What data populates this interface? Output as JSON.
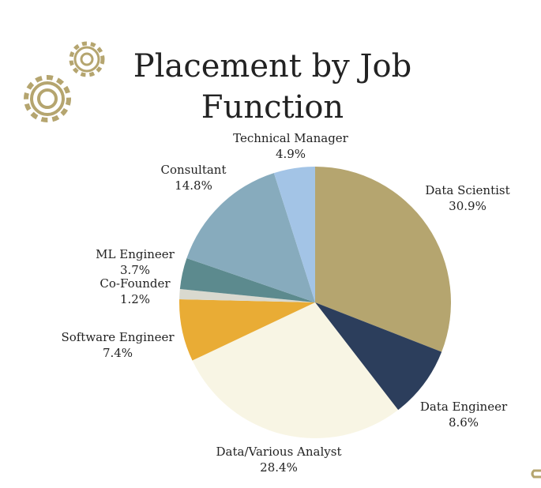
{
  "chart_data": {
    "type": "pie",
    "title": "Placement by Job Function",
    "categories": [
      "Data Scientist",
      "Data Engineer",
      "Data/Various Analyst",
      "Software Engineer",
      "Co-Founder",
      "ML Engineer",
      "Consultant",
      "Technical Manager"
    ],
    "values": [
      30.9,
      8.6,
      28.4,
      7.4,
      1.2,
      3.7,
      14.8,
      4.9
    ],
    "value_labels": [
      "30.9%",
      "8.6%",
      "28.4%",
      "7.4%",
      "1.2%",
      "3.7%",
      "14.8%",
      "4.9%"
    ],
    "colors": [
      "#b5a56f",
      "#2c3e5c",
      "#f8f5e4",
      "#e9ac35",
      "#d9d9cf",
      "#5c8a8e",
      "#87abbd",
      "#a3c4e6"
    ]
  }
}
